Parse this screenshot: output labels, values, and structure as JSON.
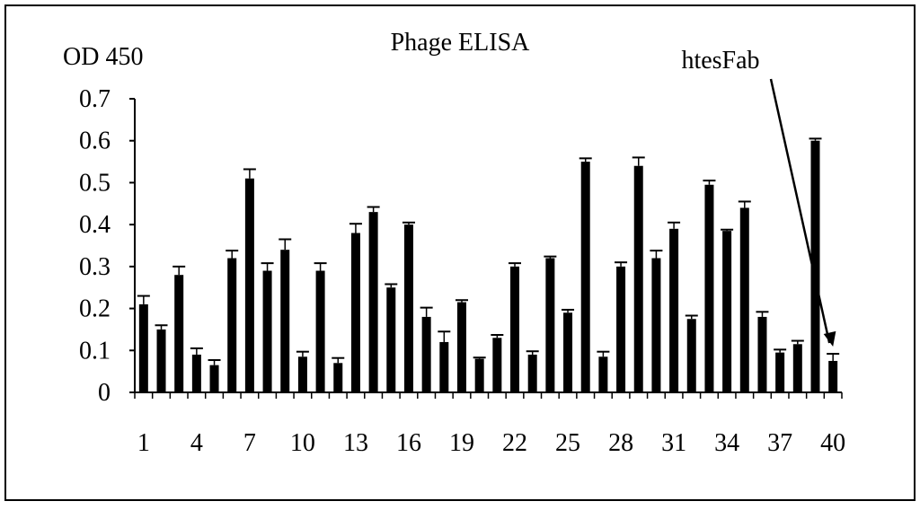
{
  "chart_data": {
    "type": "bar",
    "title": "Phage ELISA",
    "ylabel": "OD 450",
    "xlabel": "",
    "ylim": [
      0,
      0.7
    ],
    "yticks": [
      "0",
      "0.1",
      "0.2",
      "0.3",
      "0.4",
      "0.5",
      "0.6",
      "0.7"
    ],
    "xtick_labels": [
      "1",
      "4",
      "7",
      "10",
      "13",
      "16",
      "19",
      "22",
      "25",
      "28",
      "31",
      "34",
      "37",
      "40"
    ],
    "categories": [
      1,
      2,
      3,
      4,
      5,
      6,
      7,
      8,
      9,
      10,
      11,
      12,
      13,
      14,
      15,
      16,
      17,
      18,
      19,
      20,
      21,
      22,
      23,
      24,
      25,
      26,
      27,
      28,
      29,
      30,
      31,
      32,
      33,
      34,
      35,
      36,
      37,
      38,
      39,
      40
    ],
    "values": [
      0.21,
      0.15,
      0.28,
      0.09,
      0.065,
      0.32,
      0.51,
      0.29,
      0.34,
      0.085,
      0.29,
      0.07,
      0.38,
      0.43,
      0.25,
      0.4,
      0.18,
      0.12,
      0.215,
      0.08,
      0.13,
      0.3,
      0.09,
      0.32,
      0.19,
      0.55,
      0.085,
      0.3,
      0.54,
      0.32,
      0.39,
      0.175,
      0.495,
      0.385,
      0.44,
      0.18,
      0.095,
      0.115,
      0.6,
      0.075
    ],
    "errors": [
      0.02,
      0.01,
      0.02,
      0.015,
      0.012,
      0.018,
      0.022,
      0.018,
      0.025,
      0.012,
      0.018,
      0.012,
      0.022,
      0.012,
      0.008,
      0.005,
      0.022,
      0.025,
      0.005,
      0.003,
      0.007,
      0.008,
      0.008,
      0.004,
      0.007,
      0.008,
      0.012,
      0.01,
      0.02,
      0.018,
      0.015,
      0.008,
      0.01,
      0.003,
      0.015,
      0.012,
      0.007,
      0.008,
      0.005,
      0.017
    ],
    "annotation": {
      "text": "htesFab",
      "target_index": 39
    },
    "bar_color": "#000000"
  }
}
